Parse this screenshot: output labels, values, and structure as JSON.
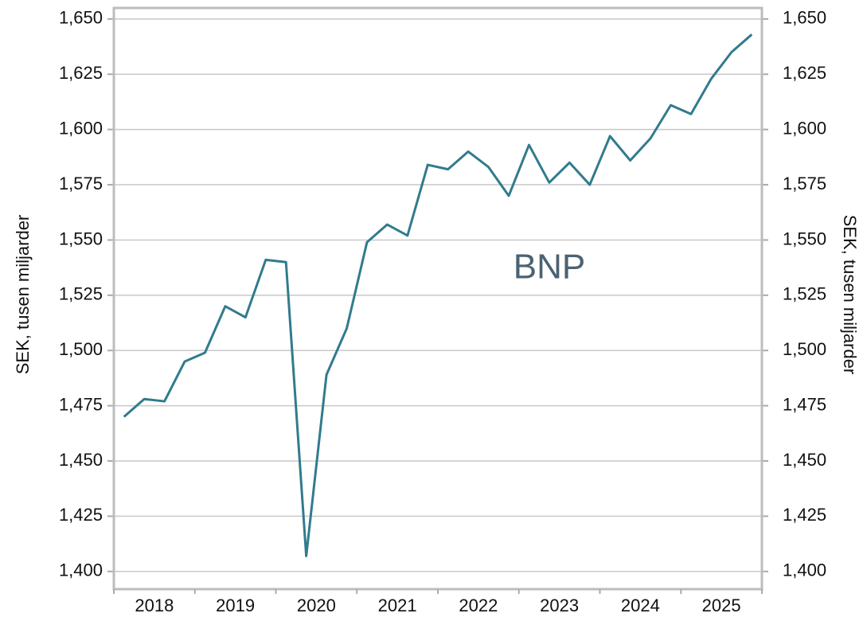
{
  "chart_data": {
    "type": "line",
    "annotation": "BNP",
    "ylabel": "SEK, tusen miljarder",
    "y2label": "SEK, tusen miljarder",
    "categories": [
      null,
      null,
      null,
      null,
      null,
      null,
      null,
      null,
      null,
      null,
      null,
      null,
      null,
      null,
      null,
      null,
      null,
      null,
      null,
      null,
      null,
      null,
      null,
      null,
      null,
      null,
      null,
      null,
      null,
      null,
      null,
      null
    ],
    "x_groups": [
      "2018",
      "2019",
      "2020",
      "2021",
      "2022",
      "2023",
      "2024",
      "2025"
    ],
    "series": [
      {
        "name": "BNP",
        "color": "#317b8d",
        "values": [
          1470,
          1478,
          1477,
          1495,
          1499,
          1520,
          1515,
          1541,
          1540,
          1407,
          1489,
          1510,
          1549,
          1557,
          1552,
          1584,
          1582,
          1590,
          1583,
          1570,
          1593,
          1576,
          1585,
          1575,
          1597,
          1586,
          1596,
          1611,
          1607,
          1623,
          1635,
          1643
        ]
      }
    ],
    "ylim": [
      1392,
      1655
    ],
    "yticks": [
      {
        "value": 1400,
        "label": "1,400"
      },
      {
        "value": 1425,
        "label": "1,425"
      },
      {
        "value": 1450,
        "label": "1,450"
      },
      {
        "value": 1475,
        "label": "1,475"
      },
      {
        "value": 1500,
        "label": "1,500"
      },
      {
        "value": 1525,
        "label": "1,525"
      },
      {
        "value": 1550,
        "label": "1,550"
      },
      {
        "value": 1575,
        "label": "1,575"
      },
      {
        "value": 1600,
        "label": "1,600"
      },
      {
        "value": 1625,
        "label": "1,625"
      },
      {
        "value": 1650,
        "label": "1,650"
      }
    ],
    "y2lim": [
      1392,
      1655
    ],
    "y2ticks": [
      {
        "value": 1400,
        "label": "1,400"
      },
      {
        "value": 1425,
        "label": "1,425"
      },
      {
        "value": 1450,
        "label": "1,450"
      },
      {
        "value": 1475,
        "label": "1,475"
      },
      {
        "value": 1500,
        "label": "1,500"
      },
      {
        "value": 1525,
        "label": "1,525"
      },
      {
        "value": 1550,
        "label": "1,550"
      },
      {
        "value": 1575,
        "label": "1,575"
      },
      {
        "value": 1600,
        "label": "1,600"
      },
      {
        "value": 1625,
        "label": "1,625"
      },
      {
        "value": 1650,
        "label": "1,650"
      }
    ],
    "grid": true
  }
}
